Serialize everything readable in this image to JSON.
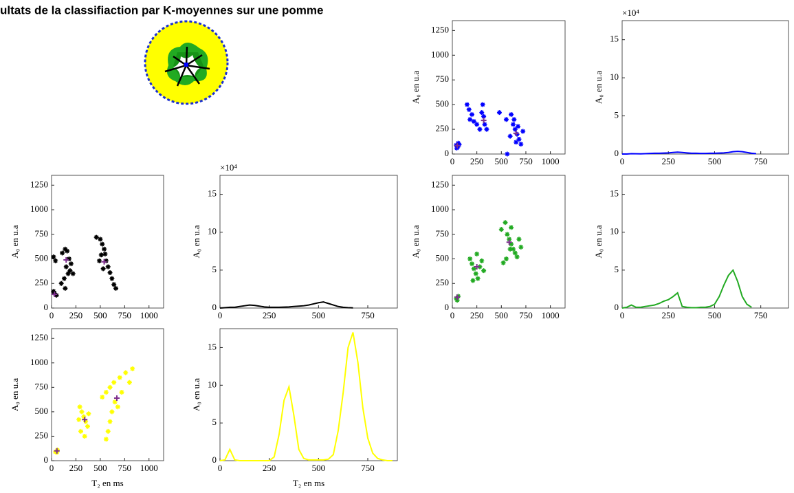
{
  "title": "ultats de la classifiaction par K-moyennes sur une pomme",
  "chart_data": [
    {
      "type": "scatter",
      "color": "#0000ff",
      "centroid_color": "#7e2f8e",
      "ylabel": "A₀ en u.a",
      "xlim": [
        0,
        1150
      ],
      "ylim": [
        0,
        1350
      ],
      "xticks": [
        0,
        250,
        500,
        750,
        1000
      ],
      "yticks": [
        0,
        250,
        500,
        750,
        1000,
        1250
      ],
      "x": [
        40,
        55,
        60,
        45,
        70,
        150,
        170,
        200,
        180,
        250,
        300,
        320,
        330,
        280,
        220,
        310,
        350,
        480,
        550,
        600,
        620,
        640,
        660,
        680,
        700,
        650,
        590,
        560,
        720,
        630,
        670
      ],
      "values": [
        90,
        70,
        110,
        60,
        95,
        500,
        450,
        400,
        350,
        300,
        420,
        380,
        300,
        250,
        330,
        500,
        250,
        420,
        350,
        400,
        300,
        250,
        200,
        150,
        100,
        120,
        180,
        0,
        230,
        350,
        280
      ],
      "centroids": {
        "x": [
          50,
          320,
          650
        ],
        "values": [
          85,
          340,
          210
        ]
      }
    },
    {
      "type": "line",
      "color": "#0000ff",
      "ylabel": "A₀ en u.a",
      "exponent": "×10⁴",
      "xlim": [
        0,
        900
      ],
      "ylim": [
        0,
        17.5
      ],
      "xticks": [
        0,
        250,
        500,
        750
      ],
      "yticks": [
        0,
        5,
        10,
        15
      ],
      "x": [
        0,
        25,
        50,
        75,
        100,
        125,
        150,
        175,
        200,
        225,
        250,
        275,
        300,
        325,
        350,
        375,
        400,
        425,
        450,
        475,
        500,
        525,
        550,
        575,
        600,
        625,
        650,
        675,
        700,
        725,
        750,
        775,
        800,
        825,
        850,
        875
      ],
      "values": [
        0,
        0,
        0.05,
        0.03,
        0.02,
        0.05,
        0.08,
        0.1,
        0.1,
        0.12,
        0.15,
        0.2,
        0.25,
        0.2,
        0.15,
        0.1,
        0.1,
        0.08,
        0.08,
        0.1,
        0.1,
        0.12,
        0.15,
        0.2,
        0.3,
        0.35,
        0.3,
        0.2,
        0.1,
        0.05,
        null,
        null,
        null,
        null,
        null,
        null
      ]
    },
    {
      "type": "scatter",
      "color": "#000000",
      "centroid_color": "#7e2f8e",
      "ylabel": "A₀ en u.a",
      "xlim": [
        0,
        1150
      ],
      "ylim": [
        0,
        1350
      ],
      "xticks": [
        0,
        250,
        500,
        750,
        1000
      ],
      "yticks": [
        0,
        250,
        500,
        750,
        1000,
        1250
      ],
      "x": [
        20,
        40,
        30,
        50,
        20,
        110,
        140,
        160,
        180,
        150,
        170,
        130,
        100,
        200,
        190,
        220,
        140,
        460,
        500,
        520,
        540,
        510,
        560,
        580,
        600,
        620,
        640,
        660,
        490,
        550,
        530
      ],
      "values": [
        520,
        480,
        150,
        130,
        170,
        560,
        600,
        580,
        500,
        420,
        350,
        300,
        250,
        450,
        380,
        350,
        200,
        720,
        700,
        650,
        600,
        540,
        480,
        420,
        360,
        300,
        240,
        200,
        480,
        550,
        400
      ],
      "centroids": {
        "x": [
          30,
          150,
          540
        ],
        "values": [
          140,
          490,
          470
        ]
      }
    },
    {
      "type": "line",
      "color": "#000000",
      "ylabel": "A₀ en u.a",
      "exponent": "×10⁴",
      "xlim": [
        0,
        900
      ],
      "ylim": [
        0,
        17.5
      ],
      "xticks": [
        0,
        250,
        500,
        750
      ],
      "yticks": [
        0,
        5,
        10,
        15
      ],
      "x": [
        0,
        25,
        50,
        75,
        100,
        125,
        150,
        175,
        200,
        225,
        250,
        275,
        300,
        325,
        350,
        375,
        400,
        425,
        450,
        475,
        500,
        525,
        550,
        575,
        600,
        625,
        650,
        675,
        700,
        725,
        750,
        775,
        800,
        825,
        850,
        875
      ],
      "values": [
        0,
        0.05,
        0.1,
        0.1,
        0.2,
        0.3,
        0.4,
        0.35,
        0.25,
        0.15,
        0.1,
        0.1,
        0.1,
        0.12,
        0.15,
        0.2,
        0.25,
        0.3,
        0.4,
        0.55,
        0.7,
        0.8,
        0.6,
        0.4,
        0.2,
        0.1,
        0.05,
        0.02,
        null,
        null,
        null,
        null,
        null,
        null,
        null,
        null
      ]
    },
    {
      "type": "scatter",
      "color": "#22aa22",
      "centroid_color": "#7e2f8e",
      "ylabel": "A₀ en u.a",
      "xlim": [
        0,
        1150
      ],
      "ylim": [
        0,
        1350
      ],
      "xticks": [
        0,
        250,
        500,
        750,
        1000
      ],
      "yticks": [
        0,
        250,
        500,
        750,
        1000,
        1250
      ],
      "x": [
        40,
        60,
        50,
        180,
        200,
        220,
        240,
        260,
        280,
        300,
        250,
        210,
        320,
        500,
        540,
        560,
        580,
        600,
        620,
        640,
        660,
        550,
        520,
        680,
        600,
        700,
        590
      ],
      "values": [
        100,
        120,
        80,
        500,
        450,
        400,
        350,
        300,
        420,
        480,
        550,
        280,
        380,
        800,
        870,
        750,
        700,
        650,
        600,
        560,
        520,
        500,
        460,
        700,
        820,
        620,
        600
      ],
      "centroids": {
        "x": [
          50,
          250,
          580
        ],
        "values": [
          110,
          420,
          670
        ]
      }
    },
    {
      "type": "line",
      "color": "#22aa22",
      "ylabel": "A₀ en u.a",
      "xlim": [
        0,
        900
      ],
      "ylim": [
        0,
        17.5
      ],
      "xticks": [
        0,
        250,
        500,
        750
      ],
      "yticks": [
        0,
        5,
        10,
        15
      ],
      "x": [
        0,
        25,
        50,
        75,
        100,
        125,
        150,
        175,
        200,
        225,
        250,
        275,
        300,
        325,
        350,
        375,
        400,
        425,
        450,
        475,
        500,
        525,
        550,
        575,
        600,
        625,
        650,
        675,
        700,
        725,
        750,
        775,
        800,
        825,
        850,
        875
      ],
      "values": [
        0,
        0.1,
        0.4,
        0.1,
        0.1,
        0.2,
        0.3,
        0.4,
        0.6,
        0.9,
        1.1,
        1.5,
        2.0,
        0.2,
        0.1,
        0.05,
        0.05,
        0.1,
        0.1,
        0.2,
        0.5,
        1.5,
        3.0,
        4.3,
        5.0,
        3.5,
        1.5,
        0.5,
        0.1,
        null,
        null,
        null,
        null,
        null,
        null,
        null
      ]
    },
    {
      "type": "scatter",
      "color": "#ffff00",
      "centroid_color": "#7e2f8e",
      "ylabel": "A₀ en u.a",
      "xlabel": "T₂ en ms",
      "xlim": [
        0,
        1150
      ],
      "ylim": [
        0,
        1350
      ],
      "xticks": [
        0,
        250,
        500,
        750,
        1000
      ],
      "yticks": [
        0,
        250,
        500,
        750,
        1000,
        1250
      ],
      "x": [
        40,
        60,
        55,
        290,
        310,
        330,
        350,
        370,
        300,
        340,
        280,
        380,
        520,
        560,
        600,
        640,
        700,
        760,
        830,
        650,
        620,
        600,
        580,
        560,
        720,
        680,
        800
      ],
      "values": [
        90,
        110,
        85,
        550,
        500,
        450,
        400,
        350,
        300,
        250,
        420,
        480,
        650,
        700,
        750,
        800,
        850,
        900,
        940,
        600,
        500,
        400,
        300,
        220,
        700,
        550,
        800
      ],
      "centroids": {
        "x": [
          55,
          340,
          670
        ],
        "values": [
          100,
          420,
          640
        ]
      }
    },
    {
      "type": "line",
      "color": "#ffff00",
      "ylabel": "A₀ en u.a",
      "xlabel": "T₂ en ms",
      "xlim": [
        0,
        900
      ],
      "ylim": [
        0,
        17.5
      ],
      "xticks": [
        0,
        250,
        500,
        750
      ],
      "yticks": [
        0,
        5,
        10,
        15
      ],
      "x": [
        0,
        25,
        50,
        75,
        100,
        125,
        150,
        175,
        200,
        225,
        250,
        275,
        300,
        325,
        350,
        375,
        400,
        425,
        450,
        475,
        500,
        525,
        550,
        575,
        600,
        625,
        650,
        675,
        700,
        725,
        750,
        775,
        800,
        825,
        850,
        875
      ],
      "values": [
        0,
        0.1,
        1.5,
        0.1,
        0,
        0,
        0,
        0,
        0,
        0,
        0,
        0.5,
        3.5,
        8,
        9.8,
        6,
        1.5,
        0.3,
        0.1,
        0.1,
        0.1,
        0.1,
        0.2,
        0.8,
        4,
        9,
        15,
        17,
        13,
        7,
        3,
        1,
        0.3,
        0.1,
        0,
        0
      ]
    }
  ]
}
